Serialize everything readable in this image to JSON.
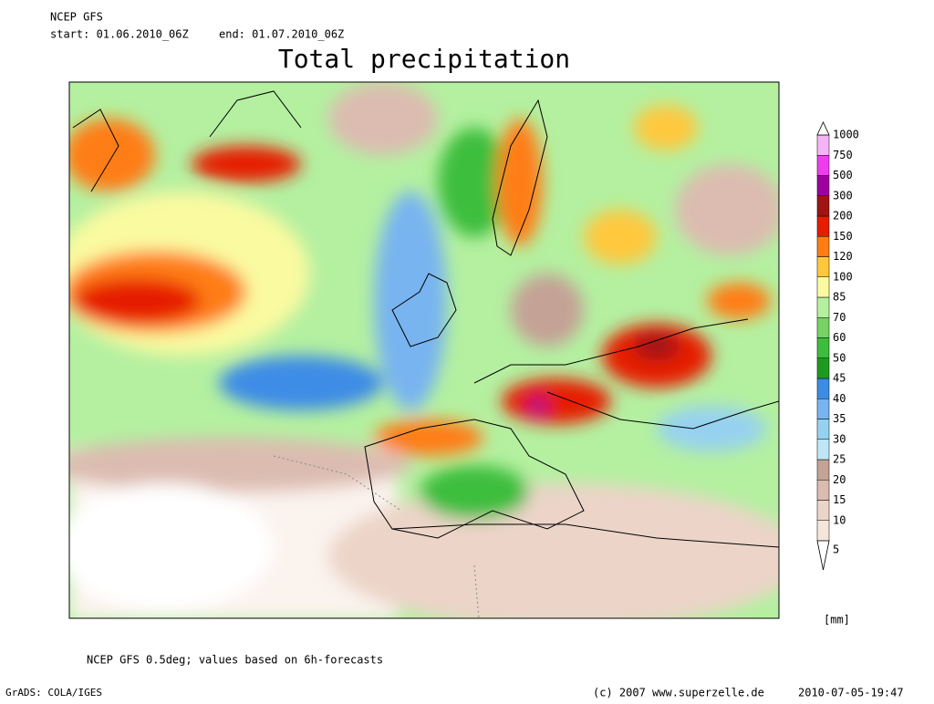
{
  "header": {
    "model": "NCEP GFS",
    "start": "start: 01.06.2010_06Z",
    "end": "end: 01.07.2010_06Z",
    "title": "Total precipitation"
  },
  "legend": {
    "unit": "[mm]",
    "levels": [
      5,
      10,
      15,
      20,
      25,
      30,
      35,
      40,
      45,
      50,
      60,
      70,
      85,
      100,
      120,
      150,
      200,
      300,
      500,
      750,
      1000
    ],
    "colors": [
      "#f5e6dc",
      "#ecd4c8",
      "#dcbcb0",
      "#c4a296",
      "#bee6f5",
      "#96d2f0",
      "#78b4f0",
      "#3c8ce6",
      "#1e9b1e",
      "#3cbe3c",
      "#78d264",
      "#b4f0a0",
      "#fafaa0",
      "#ffc83c",
      "#ff7d14",
      "#e61e00",
      "#a01414",
      "#a000a0",
      "#f03cf0",
      "#f5b4f5"
    ]
  },
  "footer": {
    "note": "NCEP GFS 0.5deg; values based on 6h-forecasts",
    "software": "GrADS: COLA/IGES",
    "copyright": "(c) 2007 www.superzelle.de",
    "timestamp": "2010-07-05-19:47"
  }
}
